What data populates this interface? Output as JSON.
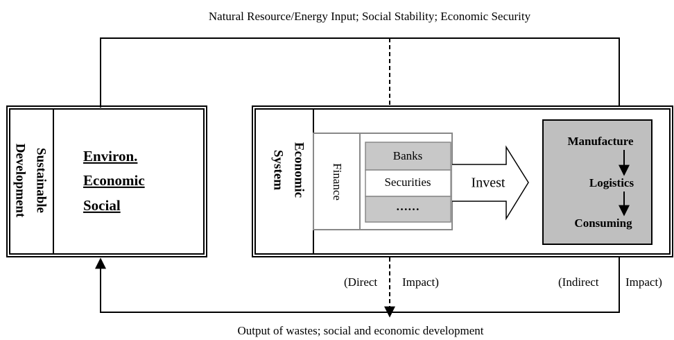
{
  "top_label": "Natural Resource/Energy Input; Social Stability; Economic Security",
  "bottom_label": "Output of wastes; social and economic development",
  "sustainable": {
    "title": [
      "Sustainable",
      "Development"
    ],
    "items": [
      "Environ.",
      "Economic",
      "Social"
    ]
  },
  "economic": {
    "title": [
      "Economic",
      "System"
    ],
    "finance": "Finance",
    "institutions": [
      "Banks",
      "Securities",
      "……"
    ],
    "invest": "Invest",
    "chain": [
      "Manufacture",
      "Logistics",
      "Consuming"
    ]
  },
  "impacts": {
    "direct": [
      "(Direct",
      "Impact)"
    ],
    "indirect": [
      "(Indirect",
      "Impact)"
    ]
  }
}
